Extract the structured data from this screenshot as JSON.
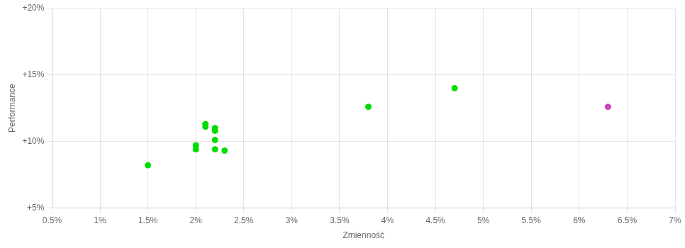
{
  "chart_data": {
    "type": "scatter",
    "xlabel": "Zmienność",
    "ylabel": "Performance",
    "xlim": [
      0.005,
      0.07
    ],
    "ylim": [
      0.05,
      0.2
    ],
    "xticks": [
      {
        "value": 0.005,
        "label": "0.5%"
      },
      {
        "value": 0.01,
        "label": "1%"
      },
      {
        "value": 0.015,
        "label": "1.5%"
      },
      {
        "value": 0.02,
        "label": "2%"
      },
      {
        "value": 0.025,
        "label": "2.5%"
      },
      {
        "value": 0.03,
        "label": "3%"
      },
      {
        "value": 0.035,
        "label": "3.5%"
      },
      {
        "value": 0.04,
        "label": "4%"
      },
      {
        "value": 0.045,
        "label": "4.5%"
      },
      {
        "value": 0.05,
        "label": "5%"
      },
      {
        "value": 0.055,
        "label": "5.5%"
      },
      {
        "value": 0.06,
        "label": "6%"
      },
      {
        "value": 0.065,
        "label": "6.5%"
      },
      {
        "value": 0.07,
        "label": "7%"
      }
    ],
    "yticks": [
      {
        "value": 0.05,
        "label": "+5%"
      },
      {
        "value": 0.1,
        "label": "+10%"
      },
      {
        "value": 0.15,
        "label": "+15%"
      },
      {
        "value": 0.2,
        "label": "+20%"
      }
    ],
    "grid": true,
    "series": [
      {
        "color": "#00dd00",
        "x": [
          0.015,
          0.02,
          0.02,
          0.021,
          0.021,
          0.022,
          0.022,
          0.022,
          0.022,
          0.023,
          0.038,
          0.047
        ],
        "values": [
          0.082,
          0.094,
          0.097,
          0.111,
          0.113,
          0.11,
          0.108,
          0.101,
          0.094,
          0.093,
          0.126,
          0.14
        ]
      },
      {
        "color": "#cc44bb",
        "x": [
          0.063
        ],
        "values": [
          0.126
        ]
      }
    ]
  }
}
